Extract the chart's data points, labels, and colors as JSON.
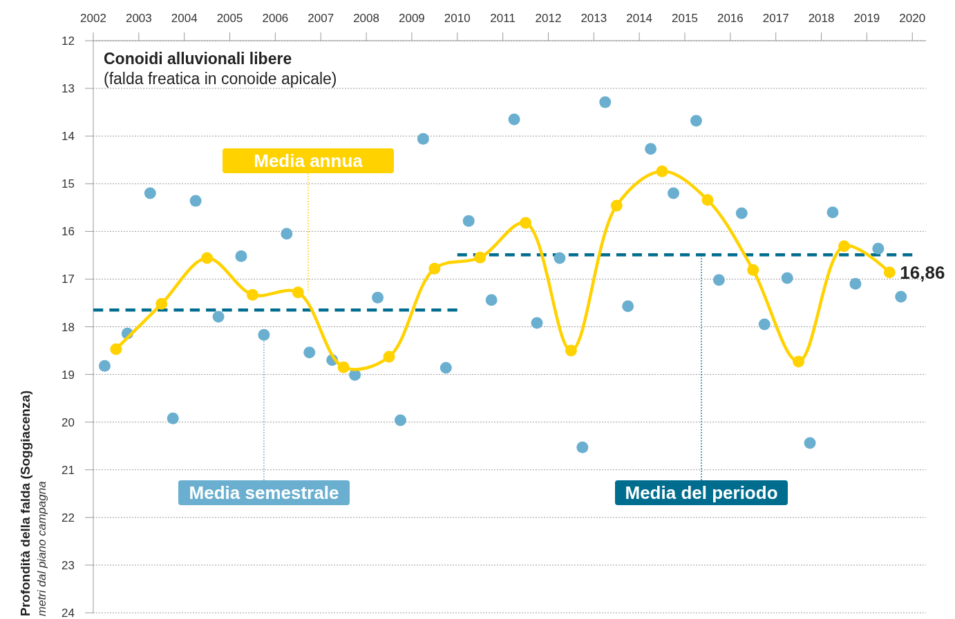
{
  "chart_data": {
    "type": "scatter",
    "title": "Conoidi alluvionali libere",
    "subtitle": "(falda freatica in conoide apicale)",
    "ylabel": "Profondità della falda (Soggiacenza)",
    "annotations": [
      "metri dal piano campagna"
    ],
    "xlim": [
      2002,
      2020.3
    ],
    "xticks": [
      2002,
      2003,
      2004,
      2005,
      2006,
      2007,
      2008,
      2009,
      2010,
      2011,
      2012,
      2013,
      2014,
      2015,
      2016,
      2017,
      2018,
      2019,
      2020
    ],
    "ylim": [
      24,
      12
    ],
    "yticks": [
      12,
      13,
      14,
      15,
      16,
      17,
      18,
      19,
      20,
      21,
      22,
      23,
      24
    ],
    "grid": "y",
    "series": [
      {
        "name": "Media semestrale",
        "marker": "circle",
        "color": "#6aafcf",
        "x": [
          2002.25,
          2002.75,
          2003.25,
          2003.75,
          2004.25,
          2004.75,
          2005.25,
          2005.75,
          2006.25,
          2006.75,
          2007.25,
          2007.75,
          2008.25,
          2008.75,
          2009.25,
          2009.75,
          2010.25,
          2010.75,
          2011.25,
          2011.75,
          2012.25,
          2012.75,
          2013.25,
          2013.75,
          2014.25,
          2014.75,
          2015.25,
          2015.75,
          2016.25,
          2016.75,
          2017.25,
          2017.75,
          2018.25,
          2018.75,
          2019.25,
          2019.75
        ],
        "values": [
          18.82,
          18.14,
          15.2,
          19.92,
          15.36,
          17.79,
          16.52,
          18.17,
          16.05,
          18.54,
          18.7,
          19.01,
          17.39,
          19.96,
          14.06,
          18.86,
          15.78,
          17.44,
          13.65,
          17.92,
          16.56,
          20.53,
          13.29,
          17.57,
          14.27,
          15.2,
          13.68,
          17.02,
          15.62,
          17.95,
          16.98,
          20.44,
          15.6,
          17.1,
          16.36,
          17.37
        ]
      },
      {
        "name": "Media annua",
        "type": "line",
        "marker": "circle",
        "color": "#ffd200",
        "x": [
          2002.5,
          2003.5,
          2004.5,
          2005.5,
          2006.5,
          2007.5,
          2008.5,
          2009.5,
          2010.5,
          2011.5,
          2012.5,
          2013.5,
          2014.5,
          2015.5,
          2016.5,
          2017.5,
          2018.5,
          2019.5
        ],
        "values": [
          18.47,
          17.52,
          16.56,
          17.33,
          17.28,
          18.85,
          18.63,
          16.78,
          16.55,
          15.82,
          18.5,
          15.46,
          14.74,
          15.34,
          16.81,
          18.73,
          16.31,
          16.86
        ],
        "value_labels": [
          null,
          null,
          null,
          null,
          null,
          null,
          null,
          null,
          null,
          null,
          null,
          null,
          null,
          null,
          null,
          null,
          null,
          "16,86"
        ]
      },
      {
        "name": "Media del periodo",
        "type": "line",
        "marker": "none",
        "line_style": "dashed",
        "color": "#006d8f",
        "x": [
          2010,
          2020
        ],
        "values": [
          16.49,
          16.49
        ]
      },
      {
        "type": "line",
        "marker": "none",
        "line_style": "dashed",
        "color": "#006d8f",
        "x": [
          2002,
          2010
        ],
        "values": [
          17.65,
          17.65
        ]
      }
    ]
  }
}
